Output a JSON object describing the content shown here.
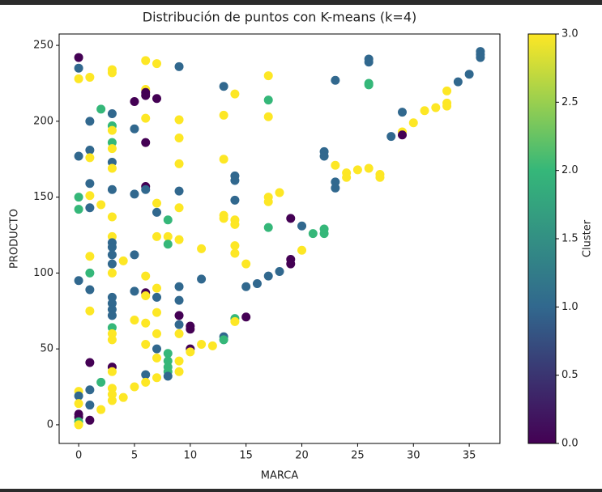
{
  "chart_data": {
    "type": "scatter",
    "title": "Distribución de puntos con K-means (k=4)",
    "x_label": "MARCA",
    "y_label": "PRODUCTO",
    "colorbar_label": "Cluster",
    "xlim": [
      -1.75,
      37.75
    ],
    "ylim": [
      -12.3,
      257.5
    ],
    "xticks": [
      0,
      5,
      10,
      15,
      20,
      25,
      30,
      35
    ],
    "yticks": [
      0,
      50,
      100,
      150,
      200,
      250
    ],
    "clim": [
      0,
      3
    ],
    "cticks": [
      {
        "value": 0,
        "label": "0.0"
      },
      0.5,
      {
        "value": 1,
        "label": "1.0"
      },
      1.5,
      {
        "value": 2,
        "label": "2.0"
      },
      2.5,
      {
        "value": 3,
        "label": "3.0"
      }
    ],
    "colors": [
      "#440154",
      "#31688e",
      "#35b779",
      "#fde725"
    ],
    "x": [
      0,
      0,
      0,
      0,
      0,
      0,
      0,
      0,
      0,
      0,
      0,
      0,
      0,
      0,
      1,
      1,
      1,
      1,
      1,
      1,
      1,
      1,
      1,
      1,
      1,
      1,
      1,
      1,
      1,
      2,
      2,
      2,
      2,
      3,
      3,
      3,
      3,
      3,
      3,
      3,
      3,
      3,
      3,
      3,
      3,
      3,
      3,
      3,
      3,
      3,
      3,
      3,
      3,
      3,
      3,
      3,
      3,
      3,
      3,
      3,
      3,
      3,
      4,
      4,
      5,
      5,
      5,
      5,
      5,
      5,
      5,
      6,
      6,
      6,
      6,
      6,
      6,
      6,
      6,
      6,
      6,
      6,
      6,
      6,
      6,
      6,
      7,
      7,
      7,
      7,
      7,
      7,
      7,
      7,
      7,
      7,
      7,
      7,
      8,
      8,
      8,
      8,
      8,
      8,
      8,
      8,
      9,
      9,
      9,
      9,
      9,
      9,
      9,
      9,
      9,
      9,
      9,
      9,
      9,
      9,
      10,
      10,
      10,
      10,
      11,
      11,
      11,
      12,
      13,
      13,
      13,
      13,
      13,
      13,
      13,
      14,
      14,
      14,
      14,
      14,
      14,
      14,
      14,
      14,
      14,
      15,
      15,
      15,
      16,
      17,
      17,
      17,
      17,
      17,
      17,
      17,
      18,
      18,
      19,
      19,
      19,
      20,
      20,
      21,
      22,
      22,
      22,
      22,
      23,
      23,
      23,
      23,
      24,
      24,
      25,
      26,
      26,
      26,
      26,
      26,
      27,
      27,
      28,
      29,
      29,
      29,
      30,
      31,
      32,
      33,
      33,
      33,
      34,
      35,
      36,
      36,
      36
    ],
    "y": [
      242,
      235,
      228,
      177,
      150,
      142,
      95,
      22,
      19,
      14,
      7,
      5,
      2,
      0,
      229,
      200,
      181,
      176,
      159,
      151,
      143,
      111,
      100,
      89,
      75,
      41,
      23,
      13,
      3,
      208,
      145,
      28,
      10,
      234,
      232,
      205,
      197,
      194,
      186,
      182,
      173,
      169,
      155,
      137,
      124,
      120,
      117,
      112,
      106,
      100,
      84,
      80,
      76,
      72,
      64,
      60,
      56,
      38,
      35,
      24,
      20,
      16,
      108,
      18,
      213,
      195,
      152,
      112,
      88,
      69,
      25,
      240,
      221,
      219,
      217,
      202,
      186,
      157,
      155,
      98,
      87,
      85,
      67,
      53,
      33,
      28,
      238,
      215,
      146,
      140,
      124,
      90,
      84,
      74,
      60,
      50,
      44,
      31,
      135,
      124,
      119,
      47,
      42,
      38,
      35,
      32,
      236,
      201,
      189,
      172,
      154,
      143,
      122,
      91,
      82,
      72,
      66,
      60,
      42,
      35,
      65,
      63,
      50,
      48,
      116,
      96,
      53,
      52,
      223,
      204,
      175,
      138,
      136,
      58,
      56,
      218,
      164,
      161,
      148,
      135,
      132,
      118,
      113,
      70,
      68,
      106,
      91,
      71,
      93,
      230,
      214,
      203,
      150,
      147,
      130,
      98,
      153,
      101,
      136,
      109,
      106,
      131,
      115,
      126,
      180,
      177,
      129,
      126,
      227,
      171,
      160,
      156,
      166,
      163,
      168,
      241,
      239,
      225,
      224,
      169,
      165,
      163,
      190,
      206,
      193,
      191,
      199,
      207,
      209,
      220,
      212,
      210,
      226,
      231,
      246,
      244,
      242
    ],
    "color_values": [
      0,
      1,
      3,
      1,
      2,
      2,
      1,
      3,
      1,
      3,
      0,
      0,
      2,
      3,
      3,
      1,
      1,
      3,
      1,
      3,
      1,
      3,
      2,
      1,
      3,
      0,
      1,
      1,
      0,
      2,
      3,
      2,
      3,
      3,
      3,
      1,
      2,
      3,
      2,
      3,
      1,
      3,
      1,
      3,
      3,
      1,
      1,
      1,
      1,
      3,
      1,
      1,
      1,
      1,
      2,
      3,
      3,
      0,
      3,
      3,
      3,
      3,
      3,
      3,
      0,
      1,
      1,
      1,
      1,
      3,
      3,
      3,
      3,
      0,
      0,
      3,
      0,
      0,
      1,
      3,
      0,
      3,
      3,
      3,
      1,
      3,
      3,
      0,
      3,
      1,
      3,
      3,
      1,
      3,
      3,
      1,
      3,
      3,
      2,
      3,
      2,
      2,
      2,
      2,
      2,
      1,
      1,
      3,
      3,
      3,
      1,
      3,
      3,
      1,
      1,
      0,
      1,
      3,
      3,
      3,
      0,
      0,
      0,
      3,
      3,
      1,
      3,
      3,
      1,
      3,
      3,
      3,
      3,
      1,
      2,
      3,
      1,
      1,
      1,
      3,
      3,
      3,
      3,
      2,
      3,
      3,
      1,
      0,
      1,
      3,
      2,
      3,
      3,
      3,
      2,
      1,
      3,
      1,
      0,
      0,
      0,
      1,
      3,
      2,
      1,
      1,
      2,
      2,
      1,
      3,
      1,
      1,
      3,
      3,
      3,
      1,
      1,
      2,
      2,
      3,
      3,
      3,
      1,
      1,
      3,
      0,
      3,
      3,
      3,
      3,
      3,
      3,
      1,
      1,
      1,
      1,
      1
    ]
  }
}
